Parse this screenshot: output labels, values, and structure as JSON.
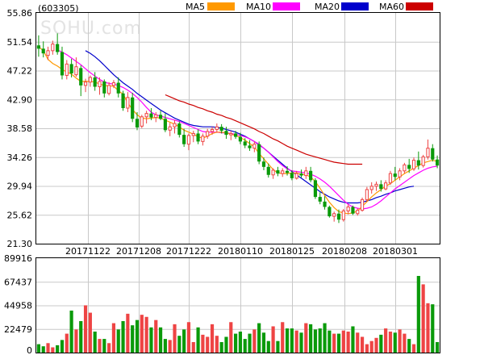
{
  "stock_code": "(603305)",
  "watermark": "SOHU.com",
  "colors": {
    "up": "#ee4444",
    "down": "#0a9a0a",
    "grid": "#c8c8c8",
    "border": "#000000"
  },
  "chart_data": {
    "type": "candlestick",
    "price_axis": {
      "ylim": [
        21.3,
        55.86
      ],
      "ticks": [
        "55.86",
        "51.54",
        "47.22",
        "42.90",
        "38.58",
        "34.26",
        "29.94",
        "25.62",
        "21.30"
      ]
    },
    "date_ticks": [
      "20171122",
      "20171208",
      "20171222",
      "20180110",
      "20180125",
      "20180208",
      "20180301"
    ],
    "legend": [
      {
        "name": "MA5",
        "color": "#ff9900"
      },
      {
        "name": "MA10",
        "color": "#ff00ff"
      },
      {
        "name": "MA20",
        "color": "#0000cc"
      },
      {
        "name": "MA60",
        "color": "#cc0000"
      }
    ],
    "candles": [
      [
        51.0,
        52.5,
        49.3,
        50.5
      ],
      [
        50.5,
        51.6,
        49.2,
        49.8
      ],
      [
        49.5,
        50.8,
        48.8,
        50.2
      ],
      [
        50.2,
        51.7,
        49.6,
        51.2
      ],
      [
        51.2,
        52.8,
        49.6,
        50.0
      ],
      [
        50.0,
        50.8,
        45.9,
        46.5
      ],
      [
        46.5,
        48.8,
        45.9,
        48.2
      ],
      [
        48.2,
        49.0,
        46.2,
        46.8
      ],
      [
        46.6,
        49.2,
        46.3,
        47.8
      ],
      [
        47.6,
        48.0,
        43.4,
        45.0
      ],
      [
        45.0,
        46.0,
        44.0,
        45.5
      ],
      [
        45.5,
        46.5,
        44.8,
        46.2
      ],
      [
        46.2,
        47.0,
        44.2,
        44.8
      ],
      [
        44.8,
        46.2,
        43.6,
        45.6
      ],
      [
        45.6,
        45.9,
        43.2,
        43.8
      ],
      [
        43.8,
        45.5,
        43.5,
        45.0
      ],
      [
        45.0,
        45.8,
        44.6,
        45.4
      ],
      [
        45.4,
        46.2,
        43.2,
        43.8
      ],
      [
        43.8,
        44.2,
        41.2,
        41.6
      ],
      [
        41.6,
        44.0,
        41.0,
        43.2
      ],
      [
        43.2,
        43.9,
        39.5,
        40.0
      ],
      [
        40.0,
        41.0,
        38.3,
        38.7
      ],
      [
        38.9,
        40.6,
        38.6,
        40.3
      ],
      [
        40.3,
        41.2,
        39.3,
        40.8
      ],
      [
        40.8,
        41.6,
        39.8,
        40.2
      ],
      [
        40.2,
        41.0,
        39.5,
        40.6
      ],
      [
        40.6,
        41.2,
        39.8,
        40.0
      ],
      [
        40.0,
        40.8,
        38.0,
        38.3
      ],
      [
        38.3,
        39.4,
        37.4,
        38.8
      ],
      [
        38.8,
        39.8,
        37.8,
        39.3
      ],
      [
        39.3,
        39.6,
        37.2,
        37.6
      ],
      [
        37.6,
        38.5,
        35.8,
        36.2
      ],
      [
        36.2,
        37.8,
        35.3,
        37.5
      ],
      [
        37.5,
        38.2,
        36.5,
        37.8
      ],
      [
        37.8,
        38.4,
        36.2,
        36.6
      ],
      [
        36.6,
        37.8,
        36.0,
        37.4
      ],
      [
        37.4,
        38.5,
        37.0,
        38.1
      ],
      [
        38.1,
        38.8,
        37.6,
        38.4
      ],
      [
        38.4,
        39.3,
        37.9,
        38.8
      ],
      [
        38.8,
        39.2,
        37.8,
        38.2
      ],
      [
        38.2,
        38.8,
        37.0,
        37.6
      ],
      [
        37.6,
        38.2,
        36.8,
        37.8
      ],
      [
        37.8,
        38.2,
        37.0,
        37.3
      ],
      [
        37.3,
        37.9,
        36.2,
        36.6
      ],
      [
        36.6,
        37.1,
        35.6,
        36.0
      ],
      [
        36.0,
        36.8,
        35.2,
        35.6
      ],
      [
        35.6,
        36.6,
        35.0,
        36.2
      ],
      [
        36.2,
        36.6,
        33.2,
        33.6
      ],
      [
        33.6,
        34.2,
        32.3,
        32.8
      ],
      [
        32.8,
        33.3,
        31.2,
        31.6
      ],
      [
        31.6,
        32.6,
        31.0,
        32.3
      ],
      [
        32.3,
        32.8,
        31.4,
        31.8
      ],
      [
        31.8,
        32.6,
        31.3,
        32.2
      ],
      [
        32.2,
        32.9,
        31.5,
        31.9
      ],
      [
        31.9,
        32.3,
        30.8,
        31.1
      ],
      [
        31.1,
        32.2,
        30.9,
        31.8
      ],
      [
        31.8,
        32.4,
        31.2,
        31.5
      ],
      [
        31.5,
        32.8,
        31.0,
        32.2
      ],
      [
        32.2,
        32.8,
        30.5,
        30.8
      ],
      [
        30.8,
        31.1,
        28.0,
        28.3
      ],
      [
        28.3,
        29.0,
        27.2,
        27.6
      ],
      [
        27.6,
        28.4,
        26.4,
        26.8
      ],
      [
        26.8,
        27.0,
        25.2,
        25.4
      ],
      [
        25.4,
        26.1,
        24.6,
        25.8
      ],
      [
        25.8,
        26.4,
        24.4,
        24.9
      ],
      [
        24.9,
        26.5,
        24.6,
        26.2
      ],
      [
        26.2,
        27.2,
        25.7,
        26.8
      ],
      [
        26.8,
        27.0,
        25.6,
        25.8
      ],
      [
        25.8,
        26.6,
        25.5,
        26.3
      ],
      [
        26.3,
        28.2,
        26.1,
        27.9
      ],
      [
        27.9,
        29.8,
        27.6,
        29.4
      ],
      [
        29.4,
        30.5,
        28.8,
        29.9
      ],
      [
        29.9,
        30.6,
        29.2,
        30.2
      ],
      [
        30.2,
        30.8,
        29.1,
        29.5
      ],
      [
        29.5,
        30.8,
        29.3,
        30.4
      ],
      [
        30.4,
        32.2,
        30.1,
        31.8
      ],
      [
        31.8,
        32.8,
        30.8,
        31.3
      ],
      [
        31.3,
        32.6,
        30.8,
        32.2
      ],
      [
        32.2,
        33.4,
        31.8,
        33.1
      ],
      [
        33.1,
        34.0,
        31.9,
        32.5
      ],
      [
        32.5,
        34.2,
        32.2,
        33.8
      ],
      [
        33.8,
        35.1,
        32.4,
        33.0
      ],
      [
        33.0,
        34.6,
        32.7,
        34.3
      ],
      [
        34.3,
        36.9,
        33.9,
        35.6
      ],
      [
        35.6,
        36.2,
        33.6,
        33.9
      ],
      [
        33.9,
        34.5,
        32.6,
        33.0
      ]
    ],
    "ma5": [
      50.8,
      50.2,
      48.9,
      48.3,
      47.9,
      47.4,
      47.0,
      46.7,
      46.1,
      45.6,
      45.6,
      45.6,
      45.5,
      45.2,
      45.0,
      44.9,
      44.9,
      44.2,
      43.7,
      42.4,
      41.4,
      40.6,
      40.1,
      40.0,
      40.1,
      40.2,
      40.1,
      39.8,
      39.5,
      39.2,
      38.8,
      38.3,
      38.0,
      37.7,
      37.3,
      37.1,
      37.4,
      37.8,
      38.0,
      38.0,
      37.9,
      37.7,
      37.5,
      37.2,
      36.8,
      36.3,
      35.8,
      34.8,
      34.0,
      33.2,
      32.4,
      31.9,
      31.8,
      31.8,
      31.9,
      31.9,
      31.7,
      31.6,
      31.3,
      30.6,
      29.6,
      28.5,
      27.5,
      26.7,
      26.1,
      25.9,
      25.8,
      25.9,
      26.2,
      26.9,
      27.6,
      28.3,
      28.9,
      29.4,
      29.9,
      30.3,
      30.8,
      31.3,
      31.8,
      32.2,
      32.6,
      33.0,
      33.4,
      33.6,
      33.8,
      33.6
    ],
    "ma10": [
      null,
      null,
      null,
      null,
      50.3,
      50.0,
      49.6,
      49.1,
      48.6,
      48.1,
      47.5,
      46.9,
      46.4,
      45.9,
      45.5,
      45.3,
      45.2,
      45.0,
      44.7,
      44.3,
      43.8,
      43.2,
      42.5,
      41.7,
      41.0,
      40.6,
      40.4,
      40.2,
      40.0,
      39.8,
      39.6,
      39.3,
      39.0,
      38.7,
      38.4,
      38.1,
      38.0,
      38.0,
      38.0,
      37.9,
      37.9,
      37.8,
      37.7,
      37.5,
      37.3,
      37.0,
      36.6,
      36.2,
      35.6,
      35.0,
      34.3,
      33.6,
      33.0,
      32.5,
      32.2,
      32.1,
      32.0,
      31.9,
      31.7,
      31.4,
      31.0,
      30.5,
      29.9,
      29.2,
      28.5,
      27.8,
      27.2,
      26.8,
      26.6,
      26.5,
      26.6,
      26.8,
      27.2,
      27.7,
      28.3,
      28.9,
      29.5,
      30.0,
      30.5,
      31.0,
      31.5,
      31.9,
      32.3,
      32.6,
      32.8,
      32.9
    ],
    "ma20": [
      null,
      null,
      null,
      null,
      null,
      null,
      null,
      null,
      null,
      null,
      50.2,
      49.8,
      49.3,
      48.7,
      48.0,
      47.3,
      46.6,
      46.0,
      45.4,
      44.9,
      44.4,
      43.8,
      43.3,
      42.8,
      42.3,
      41.8,
      41.3,
      40.9,
      40.5,
      40.1,
      39.8,
      39.5,
      39.2,
      39.0,
      38.9,
      38.8,
      38.8,
      38.8,
      38.7,
      38.6,
      38.4,
      38.2,
      38.0,
      37.7,
      37.4,
      37.0,
      36.6,
      36.1,
      35.6,
      35.0,
      34.4,
      33.8,
      33.2,
      32.6,
      32.1,
      31.6,
      31.1,
      30.6,
      30.1,
      29.6,
      29.1,
      28.7,
      28.3,
      28.0,
      27.7,
      27.5,
      27.4,
      27.4,
      27.4,
      27.5,
      27.7,
      27.9,
      28.2,
      28.4,
      28.7,
      28.9,
      29.2,
      29.4,
      29.6,
      29.8,
      29.9
    ],
    "ma60": [
      null,
      null,
      null,
      null,
      null,
      null,
      null,
      null,
      null,
      null,
      null,
      null,
      null,
      null,
      null,
      null,
      null,
      null,
      null,
      null,
      null,
      null,
      null,
      null,
      null,
      null,
      null,
      43.6,
      43.3,
      43.0,
      42.7,
      42.5,
      42.2,
      42.0,
      41.7,
      41.5,
      41.2,
      41.0,
      40.7,
      40.5,
      40.2,
      40.0,
      39.7,
      39.4,
      39.1,
      38.8,
      38.5,
      38.1,
      37.8,
      37.4,
      37.0,
      36.7,
      36.3,
      35.9,
      35.6,
      35.3,
      35.0,
      34.7,
      34.5,
      34.3,
      34.1,
      33.9,
      33.7,
      33.5,
      33.4,
      33.3,
      33.2,
      33.2,
      33.2,
      33.2
    ],
    "volume": {
      "ticks": [
        "89916",
        "67437",
        "44958",
        "22479",
        "0"
      ],
      "ylim": [
        0,
        89916
      ],
      "values": [
        8000,
        6000,
        9000,
        5000,
        7000,
        12000,
        18000,
        40000,
        22000,
        30000,
        45000,
        38000,
        20000,
        13000,
        13000,
        9000,
        28000,
        22000,
        30000,
        37000,
        26000,
        31000,
        36000,
        34000,
        24000,
        31000,
        24000,
        13000,
        12000,
        27000,
        16000,
        22000,
        29000,
        10000,
        24000,
        17000,
        15000,
        27000,
        16000,
        10000,
        15000,
        29000,
        18000,
        20000,
        13000,
        18000,
        22000,
        28000,
        19000,
        11000,
        25000,
        11000,
        29000,
        23000,
        23000,
        21000,
        19000,
        28000,
        27000,
        22000,
        23000,
        28000,
        21000,
        18000,
        18000,
        21000,
        20000,
        25000,
        19000,
        15000,
        8000,
        11000,
        14000,
        17000,
        23000,
        20000,
        19000,
        22000,
        18000,
        13000,
        8000,
        73000,
        65000,
        47000,
        46000,
        10000
      ]
    }
  }
}
